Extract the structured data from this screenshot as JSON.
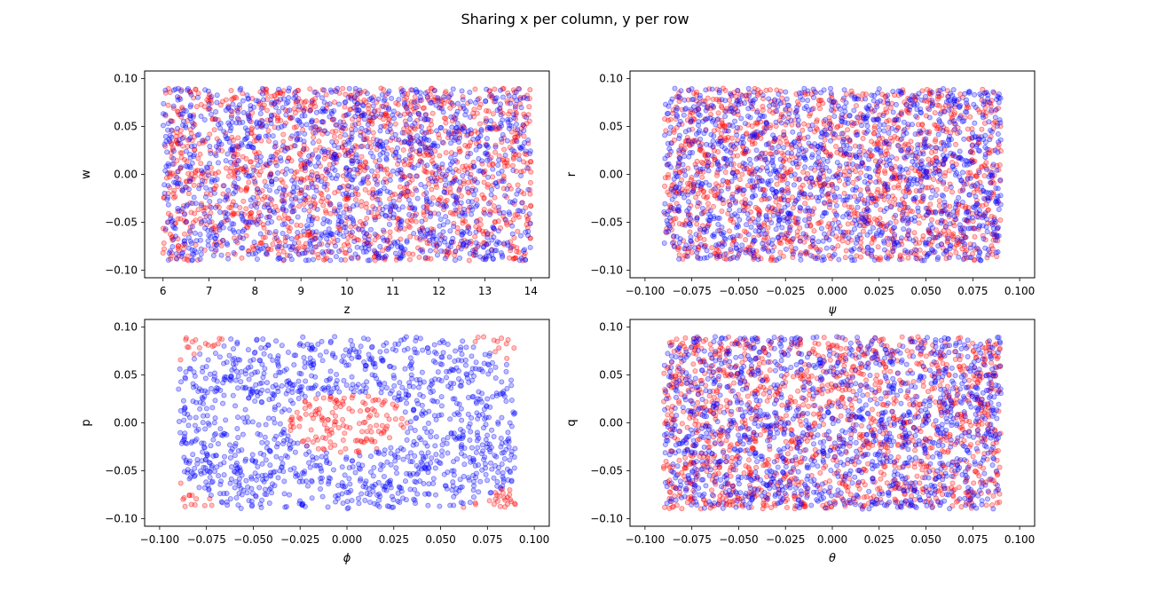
{
  "title": "Sharing x per column, y per row",
  "colors": {
    "red": "#ff0000",
    "blue": "#0000ff"
  },
  "chart_data": [
    {
      "type": "scatter",
      "xlabel": "z",
      "ylabel": "w",
      "xlim": [
        5.6,
        14.4
      ],
      "ylim": [
        -0.108,
        0.108
      ],
      "xticks": [
        6,
        7,
        8,
        9,
        10,
        11,
        12,
        13,
        14
      ],
      "xticklabels": [
        "6",
        "7",
        "8",
        "9",
        "10",
        "11",
        "12",
        "13",
        "14"
      ],
      "yticks": [
        -0.1,
        -0.05,
        0.0,
        0.05,
        0.1
      ],
      "yticklabels": [
        "−0.10",
        "−0.05",
        "0.00",
        "0.05",
        "0.10"
      ],
      "series": [
        {
          "color": "red",
          "pattern": "uniform",
          "x_range": [
            6,
            14
          ],
          "y_range": [
            -0.09,
            0.09
          ],
          "count": 1400,
          "seed": 11
        },
        {
          "color": "blue",
          "pattern": "uniform",
          "x_range": [
            6,
            14
          ],
          "y_range": [
            -0.09,
            0.09
          ],
          "count": 1400,
          "seed": 23
        }
      ]
    },
    {
      "type": "scatter",
      "xlabel": "ψ",
      "ylabel": "r",
      "xlim": [
        -0.108,
        0.108
      ],
      "ylim": [
        -0.108,
        0.108
      ],
      "xticks": [
        -0.1,
        -0.075,
        -0.05,
        -0.025,
        0.0,
        0.025,
        0.05,
        0.075,
        0.1
      ],
      "xticklabels": [
        "−0.100",
        "−0.075",
        "−0.050",
        "−0.025",
        "0.000",
        "0.025",
        "0.050",
        "0.075",
        "0.100"
      ],
      "yticks": [
        -0.1,
        -0.05,
        0.0,
        0.05,
        0.1
      ],
      "yticklabels": [
        "−0.10",
        "−0.05",
        "0.00",
        "0.05",
        "0.10"
      ],
      "series": [
        {
          "color": "red",
          "pattern": "uniform",
          "x_range": [
            -0.09,
            0.09
          ],
          "y_range": [
            -0.09,
            0.09
          ],
          "count": 1400,
          "seed": 37
        },
        {
          "color": "blue",
          "pattern": "uniform",
          "x_range": [
            -0.09,
            0.09
          ],
          "y_range": [
            -0.09,
            0.09
          ],
          "count": 1400,
          "seed": 41
        }
      ]
    },
    {
      "type": "scatter",
      "xlabel": "ϕ",
      "ylabel": "p",
      "xlim": [
        -0.108,
        0.108
      ],
      "ylim": [
        -0.108,
        0.108
      ],
      "xticks": [
        -0.1,
        -0.075,
        -0.05,
        -0.025,
        0.0,
        0.025,
        0.05,
        0.075,
        0.1
      ],
      "xticklabels": [
        "−0.100",
        "−0.075",
        "−0.050",
        "−0.025",
        "0.000",
        "0.025",
        "0.050",
        "0.075",
        "0.100"
      ],
      "yticks": [
        -0.1,
        -0.05,
        0.0,
        0.05,
        0.1
      ],
      "yticklabels": [
        "−0.10",
        "−0.05",
        "0.00",
        "0.05",
        "0.10"
      ],
      "series": [
        {
          "color": "red",
          "pattern": "circle-sign-positive",
          "x_range": [
            -0.09,
            0.09
          ],
          "y_range": [
            -0.09,
            0.09
          ],
          "count": 1400,
          "seed": 53
        },
        {
          "color": "blue",
          "pattern": "circle-sign-negative",
          "x_range": [
            -0.09,
            0.09
          ],
          "y_range": [
            -0.09,
            0.09
          ],
          "count": 1400,
          "seed": 53
        }
      ]
    },
    {
      "type": "scatter",
      "xlabel": "θ",
      "ylabel": "q",
      "xlim": [
        -0.108,
        0.108
      ],
      "ylim": [
        -0.108,
        0.108
      ],
      "xticks": [
        -0.1,
        -0.075,
        -0.05,
        -0.025,
        0.0,
        0.025,
        0.05,
        0.075,
        0.1
      ],
      "xticklabels": [
        "−0.100",
        "−0.075",
        "−0.050",
        "−0.025",
        "0.000",
        "0.025",
        "0.050",
        "0.075",
        "0.100"
      ],
      "yticks": [
        -0.1,
        -0.05,
        0.0,
        0.05,
        0.1
      ],
      "yticklabels": [
        "−0.10",
        "−0.05",
        "0.00",
        "0.05",
        "0.10"
      ],
      "series": [
        {
          "color": "red",
          "pattern": "uniform",
          "x_range": [
            -0.09,
            0.09
          ],
          "y_range": [
            -0.09,
            0.09
          ],
          "count": 1400,
          "seed": 67
        },
        {
          "color": "blue",
          "pattern": "uniform",
          "x_range": [
            -0.09,
            0.09
          ],
          "y_range": [
            -0.09,
            0.09
          ],
          "count": 1400,
          "seed": 79
        }
      ]
    }
  ]
}
